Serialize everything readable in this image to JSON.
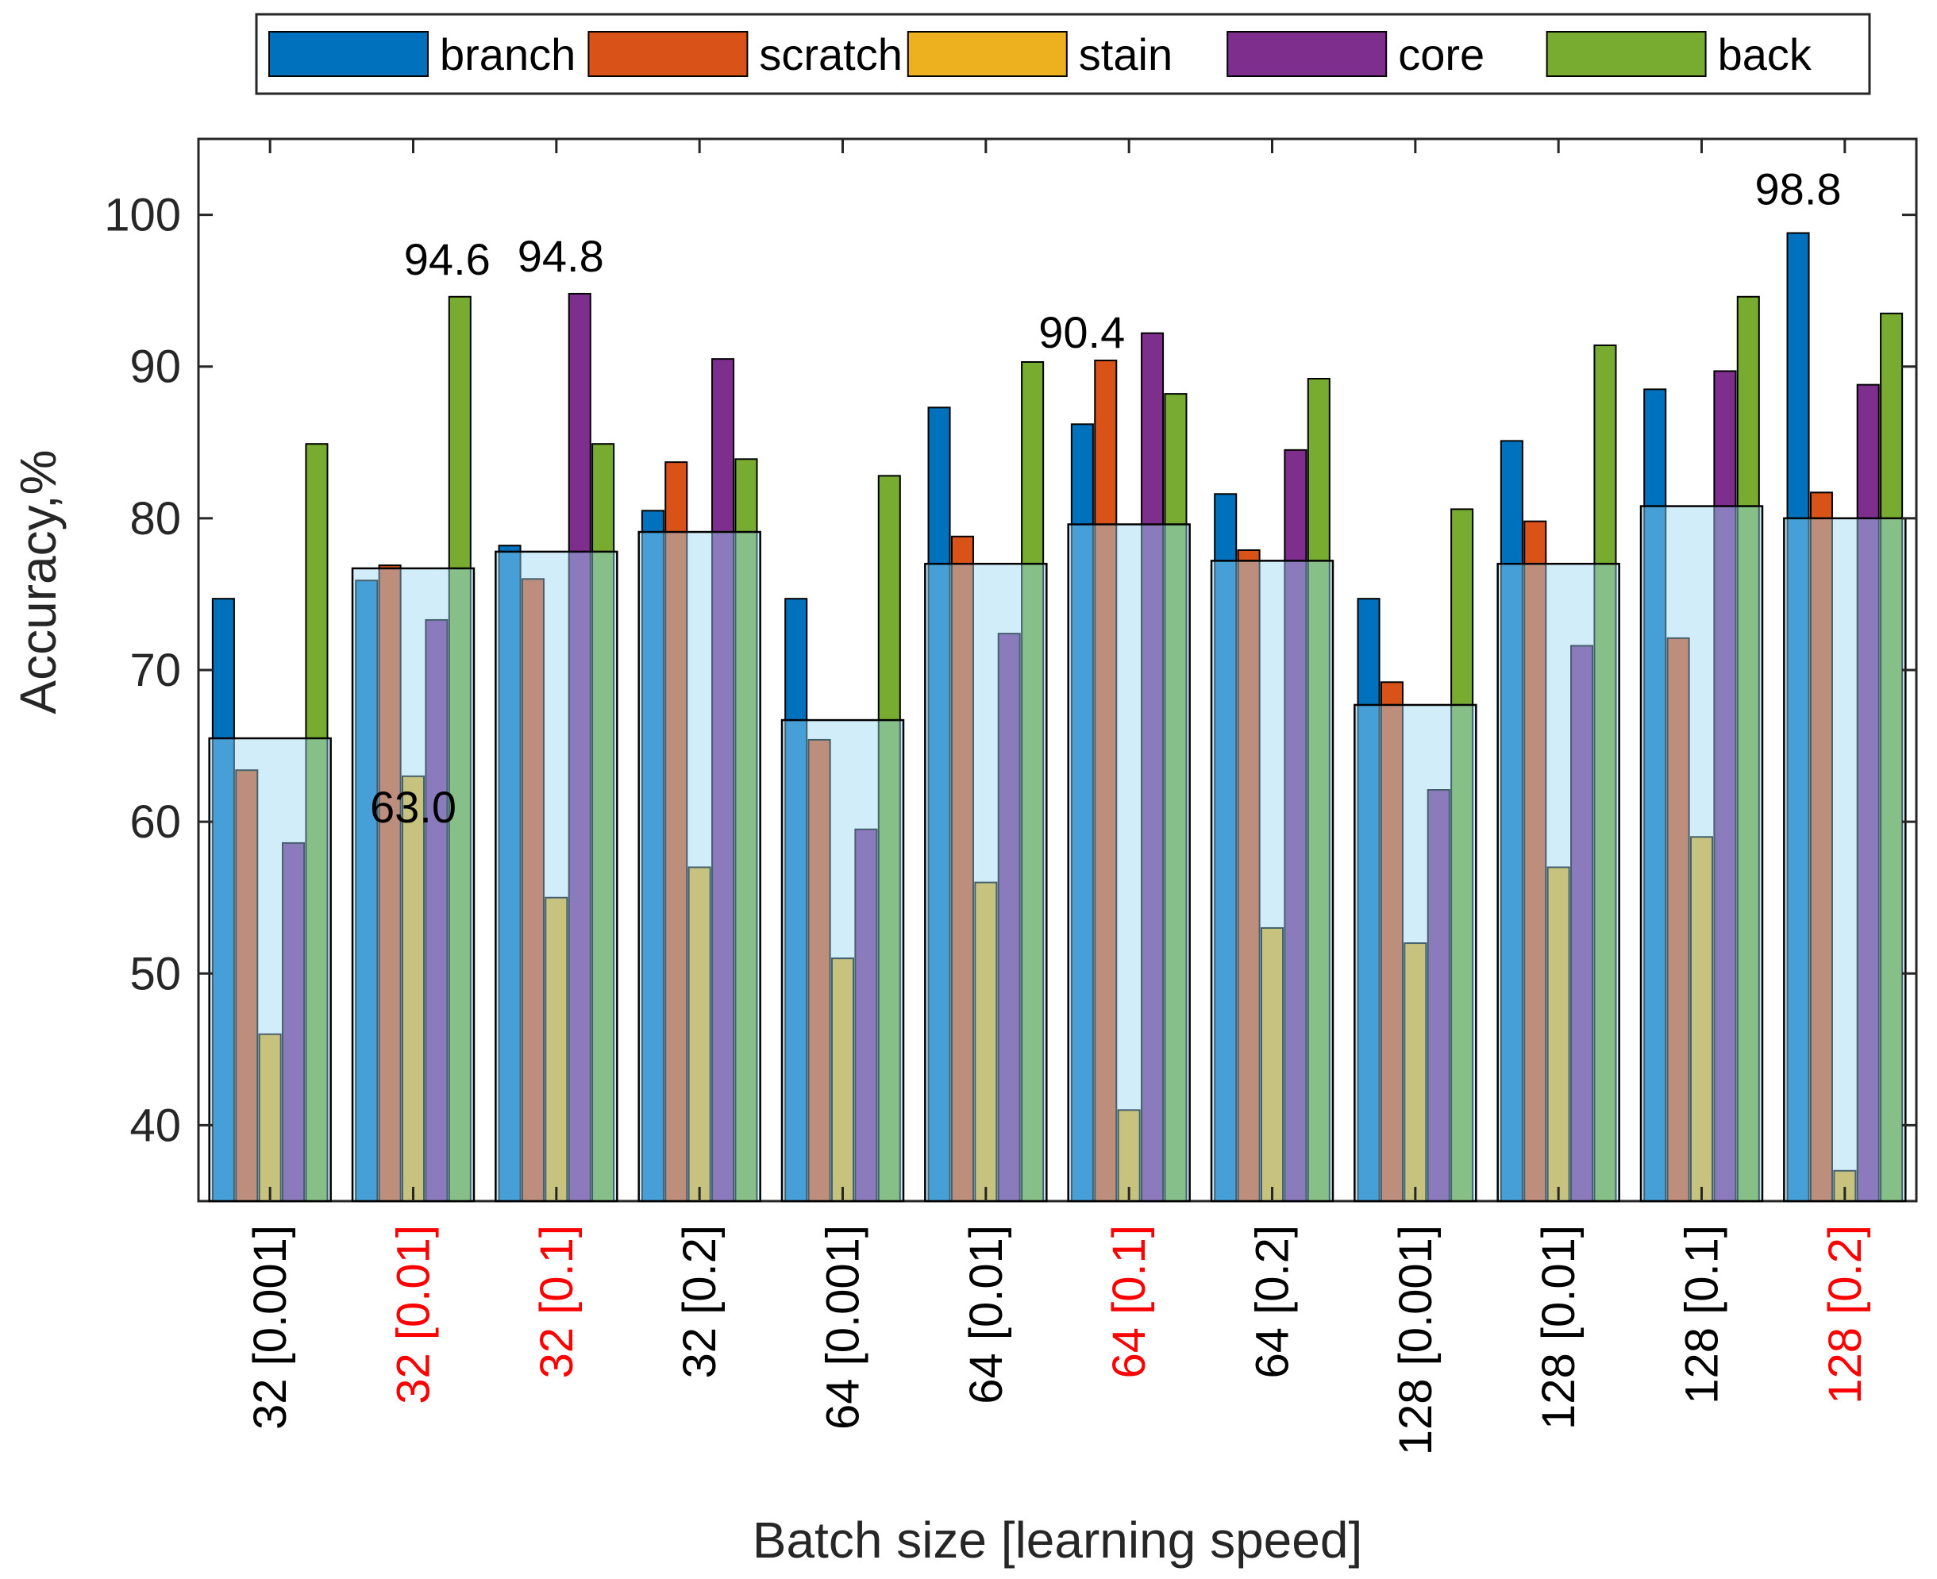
{
  "chart_data": {
    "type": "bar",
    "title": "",
    "xlabel": "Batch size [learning speed]",
    "ylabel": "Accuracy,%",
    "ylim": [
      35,
      105
    ],
    "yticks": [
      40,
      50,
      60,
      70,
      80,
      90,
      100
    ],
    "grid": false,
    "legend_position": "top",
    "categories": [
      "32 [0.001]",
      "32 [0.01]",
      "32 [0.1]",
      "32 [0.2]",
      "64 [0.001]",
      "64 [0.01]",
      "64 [0.1]",
      "64 [0.2]",
      "128 [0.001]",
      "128 [0.01]",
      "128 [0.1]",
      "128 [0.2]"
    ],
    "highlighted_categories": [
      "32 [0.01]",
      "32 [0.1]",
      "64 [0.1]",
      "128 [0.2]"
    ],
    "series": [
      {
        "name": "branch",
        "color": "#0072BD",
        "values": [
          74.7,
          75.9,
          78.2,
          80.5,
          74.7,
          87.3,
          86.2,
          81.6,
          74.7,
          85.1,
          88.5,
          98.8
        ]
      },
      {
        "name": "scratch",
        "color": "#D95319",
        "values": [
          63.4,
          76.9,
          76.0,
          83.7,
          65.4,
          78.8,
          90.4,
          77.9,
          69.2,
          79.8,
          72.1,
          81.7
        ]
      },
      {
        "name": "stain",
        "color": "#EDB120",
        "values": [
          46.0,
          63.0,
          55.0,
          57.0,
          51.0,
          56.0,
          41.0,
          53.0,
          52.0,
          57.0,
          59.0,
          37.0
        ]
      },
      {
        "name": "core",
        "color": "#7E2F8E",
        "values": [
          58.6,
          73.3,
          94.8,
          90.5,
          59.5,
          72.4,
          92.2,
          84.5,
          62.1,
          71.6,
          89.7,
          88.8
        ]
      },
      {
        "name": "back",
        "color": "#77AC30",
        "values": [
          84.9,
          94.6,
          84.9,
          83.9,
          82.8,
          90.3,
          88.2,
          89.2,
          80.6,
          91.4,
          94.6,
          93.5
        ]
      }
    ],
    "average": {
      "name": "average",
      "color": "#9BD8F3",
      "values": [
        65.5,
        76.7,
        77.8,
        79.1,
        66.7,
        77.0,
        79.6,
        77.2,
        67.7,
        77.0,
        80.8,
        80.0
      ]
    },
    "annotations": [
      {
        "text": "94.6",
        "category": "32 [0.01]",
        "series": "back"
      },
      {
        "text": "63.0",
        "category": "32 [0.01]",
        "series": "stain"
      },
      {
        "text": "94.8",
        "category": "32 [0.1]",
        "series": "core"
      },
      {
        "text": "90.4",
        "category": "64 [0.1]",
        "series": "scratch"
      },
      {
        "text": "98.8",
        "category": "128 [0.2]",
        "series": "branch"
      }
    ]
  },
  "colors": {
    "axis": "#262626",
    "highlight_label": "#FF0000",
    "normal_label": "#000000"
  }
}
